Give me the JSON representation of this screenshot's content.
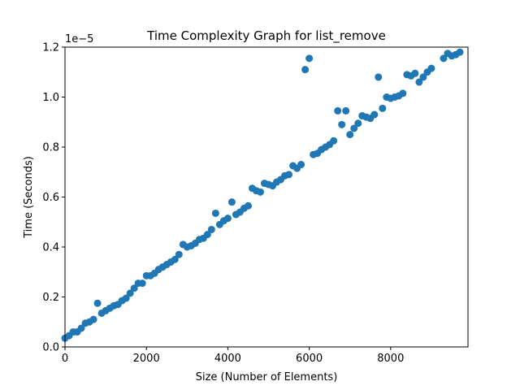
{
  "chart_data": {
    "type": "scatter",
    "title": "Time Complexity Graph for list_remove",
    "xlabel": "Size (Number of Elements)",
    "ylabel": "Time (Seconds)",
    "y_offset_label": "1e−5",
    "xlim": [
      0,
      9900
    ],
    "ylim": [
      0,
      1.2e-05
    ],
    "x_ticks": [
      0,
      2000,
      4000,
      6000,
      8000
    ],
    "x_tick_labels": [
      "0",
      "2000",
      "4000",
      "6000",
      "8000"
    ],
    "y_ticks": [
      0,
      2e-06,
      4e-06,
      6e-06,
      8e-06,
      1e-05,
      1.2e-05
    ],
    "y_tick_labels": [
      "0.0",
      "0.2",
      "0.4",
      "0.6",
      "0.8",
      "1.0",
      "1.2"
    ],
    "grid": false,
    "color": "#1f77b4",
    "x": [
      0,
      100,
      200,
      300,
      400,
      500,
      600,
      700,
      800,
      900,
      1000,
      1100,
      1200,
      1300,
      1400,
      1500,
      1600,
      1700,
      1800,
      1900,
      2000,
      2100,
      2200,
      2300,
      2400,
      2500,
      2600,
      2700,
      2800,
      2900,
      3000,
      3100,
      3200,
      3300,
      3400,
      3500,
      3600,
      3700,
      3800,
      3900,
      4000,
      4100,
      4200,
      4300,
      4400,
      4500,
      4600,
      4700,
      4800,
      4900,
      5000,
      5100,
      5200,
      5300,
      5400,
      5500,
      5600,
      5700,
      5800,
      5900,
      6000,
      6100,
      6200,
      6300,
      6400,
      6500,
      6600,
      6700,
      6800,
      6900,
      7000,
      7100,
      7200,
      7300,
      7400,
      7500,
      7600,
      7700,
      7800,
      7900,
      8000,
      8100,
      8200,
      8300,
      8400,
      8500,
      8600,
      8700,
      8800,
      8900,
      9000,
      9300,
      9400,
      9500,
      9600,
      9700
    ],
    "y": [
      3.5e-07,
      4.5e-07,
      6e-07,
      6e-07,
      7.5e-07,
      9.5e-07,
      1e-06,
      1.1e-06,
      1.75e-06,
      1.35e-06,
      1.45e-06,
      1.55e-06,
      1.65e-06,
      1.7e-06,
      1.85e-06,
      1.95e-06,
      2.15e-06,
      2.35e-06,
      2.55e-06,
      2.55e-06,
      2.85e-06,
      2.85e-06,
      2.95e-06,
      3.1e-06,
      3.2e-06,
      3.3e-06,
      3.4e-06,
      3.5e-06,
      3.7e-06,
      4.1e-06,
      4e-06,
      4.05e-06,
      4.15e-06,
      4.3e-06,
      4.35e-06,
      4.5e-06,
      4.7e-06,
      5.35e-06,
      4.9e-06,
      5.05e-06,
      5.15e-06,
      5.8e-06,
      5.3e-06,
      5.4e-06,
      5.55e-06,
      5.65e-06,
      6.35e-06,
      6.25e-06,
      6.2e-06,
      6.55e-06,
      6.5e-06,
      6.45e-06,
      6.6e-06,
      6.7e-06,
      6.85e-06,
      6.9e-06,
      7.25e-06,
      7.15e-06,
      7.3e-06,
      1.11e-05,
      1.155e-05,
      7.7e-06,
      7.75e-06,
      7.9e-06,
      8e-06,
      8.1e-06,
      8.25e-06,
      9.45e-06,
      8.9e-06,
      9.45e-06,
      8.5e-06,
      8.75e-06,
      8.95e-06,
      9.25e-06,
      9.2e-06,
      9.15e-06,
      9.3e-06,
      1.08e-05,
      9.55e-06,
      1e-05,
      9.95e-06,
      1e-05,
      1.005e-05,
      1.015e-05,
      1.09e-05,
      1.085e-05,
      1.095e-05,
      1.06e-05,
      1.08e-05,
      1.1e-05,
      1.115e-05,
      1.155e-05,
      1.175e-05,
      1.165e-05,
      1.17e-05,
      1.18e-05
    ]
  }
}
